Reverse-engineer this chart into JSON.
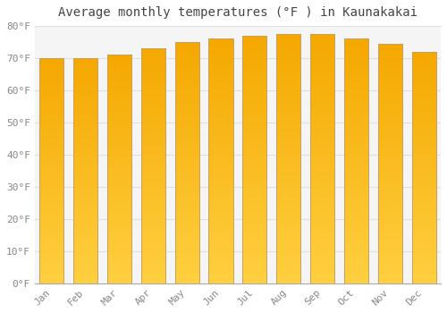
{
  "title": "Average monthly temperatures (°F ) in Kaunakakai",
  "months": [
    "Jan",
    "Feb",
    "Mar",
    "Apr",
    "May",
    "Jun",
    "Jul",
    "Aug",
    "Sep",
    "Oct",
    "Nov",
    "Dec"
  ],
  "values": [
    70.0,
    70.0,
    71.0,
    73.0,
    75.0,
    76.0,
    77.0,
    77.5,
    77.5,
    76.0,
    74.5,
    72.0
  ],
  "bar_color_top": "#FFD040",
  "bar_color_bottom": "#F5A800",
  "bar_border_color": "#C8A060",
  "ylim": [
    0,
    80
  ],
  "yticks": [
    0,
    10,
    20,
    30,
    40,
    50,
    60,
    70,
    80
  ],
  "ytick_labels": [
    "0°F",
    "10°F",
    "20°F",
    "30°F",
    "40°F",
    "50°F",
    "60°F",
    "70°F",
    "80°F"
  ],
  "background_color": "#ffffff",
  "plot_bg_color": "#f5f5f5",
  "grid_color": "#e0e0e0",
  "title_fontsize": 10,
  "tick_fontsize": 8,
  "tick_color": "#888888",
  "title_color": "#444444",
  "bar_width": 0.72
}
